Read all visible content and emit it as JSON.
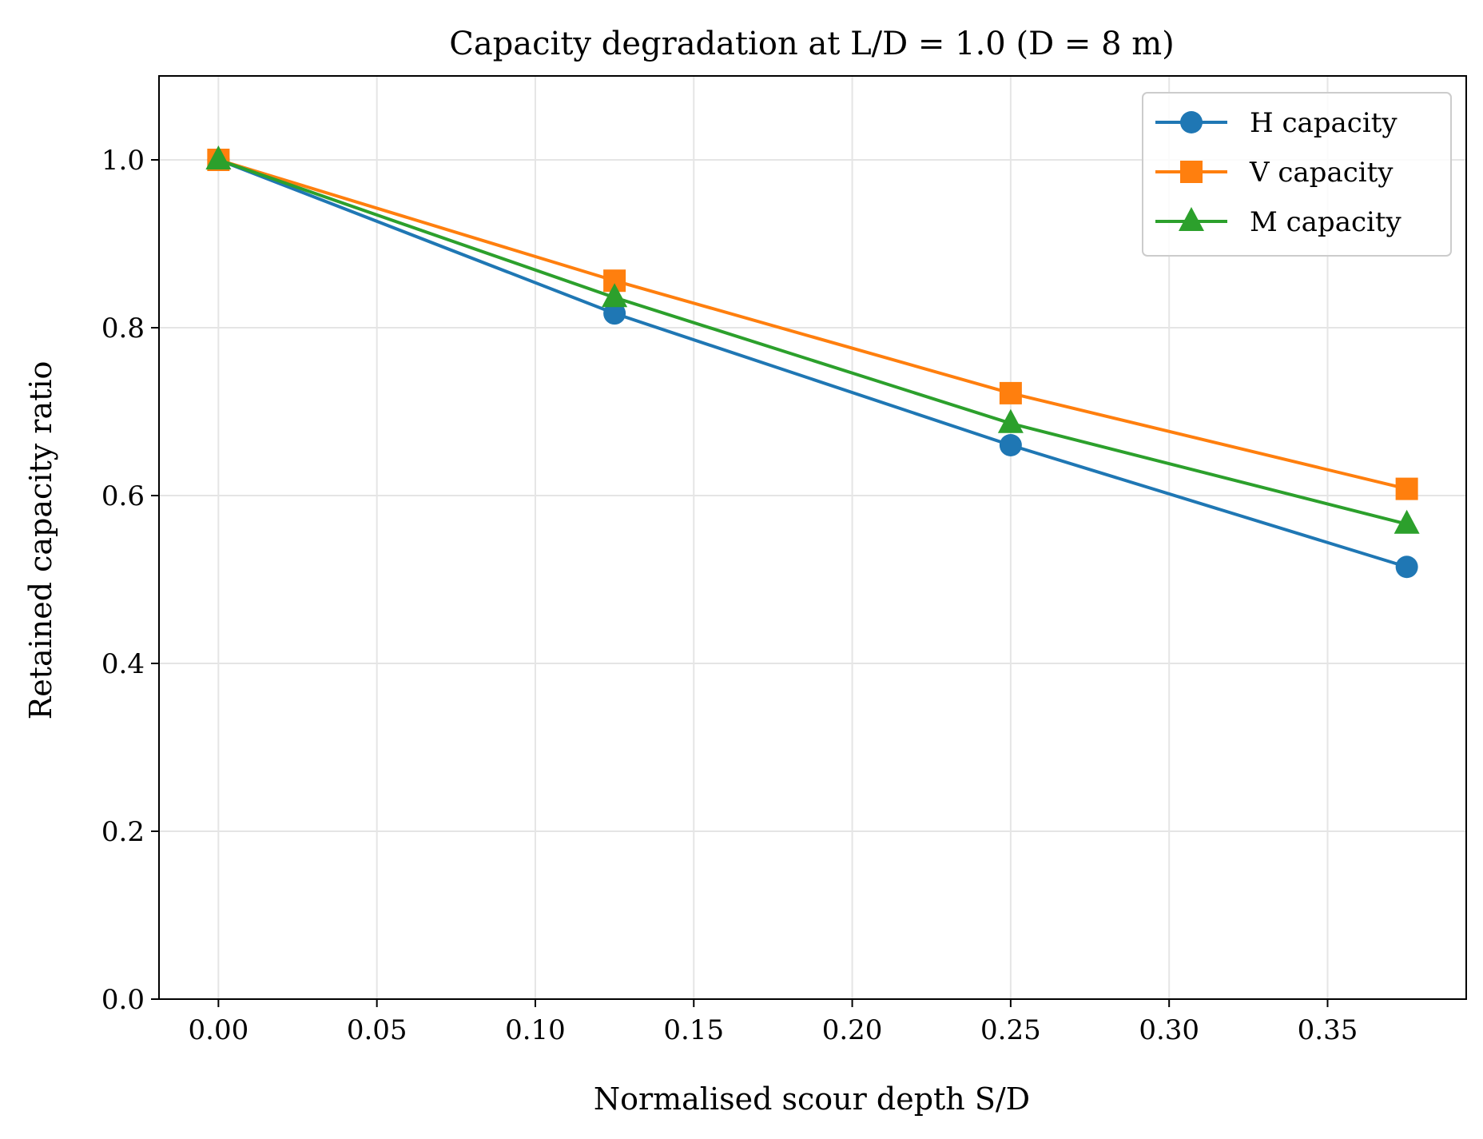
{
  "chart_data": {
    "type": "line",
    "title": "Capacity degradation at L/D = 1.0 (D = 8 m)",
    "xlabel": "Normalised scour depth S/D",
    "ylabel": "Retained capacity ratio",
    "x": [
      0.0,
      0.125,
      0.25,
      0.375
    ],
    "xlim": [
      -0.01875,
      0.39375
    ],
    "ylim": [
      0.0,
      1.1
    ],
    "xticks": [
      0.0,
      0.05,
      0.1,
      0.15,
      0.2,
      0.25,
      0.3,
      0.35
    ],
    "xtick_labels": [
      "0.00",
      "0.05",
      "0.10",
      "0.15",
      "0.20",
      "0.25",
      "0.30",
      "0.35"
    ],
    "yticks": [
      0.0,
      0.2,
      0.4,
      0.6,
      0.8,
      1.0
    ],
    "ytick_labels": [
      "0.0",
      "0.2",
      "0.4",
      "0.6",
      "0.8",
      "1.0"
    ],
    "grid": true,
    "legend_position": "top-right",
    "series": [
      {
        "name": "H capacity",
        "marker": "circle",
        "color": "#1f77b4",
        "values": [
          1.0,
          0.817,
          0.66,
          0.515
        ]
      },
      {
        "name": "V capacity",
        "marker": "square",
        "color": "#ff7f0e",
        "values": [
          1.0,
          0.856,
          0.722,
          0.608
        ]
      },
      {
        "name": "M capacity",
        "marker": "triangle",
        "color": "#2ca02c",
        "values": [
          1.0,
          0.836,
          0.686,
          0.566
        ]
      }
    ]
  }
}
